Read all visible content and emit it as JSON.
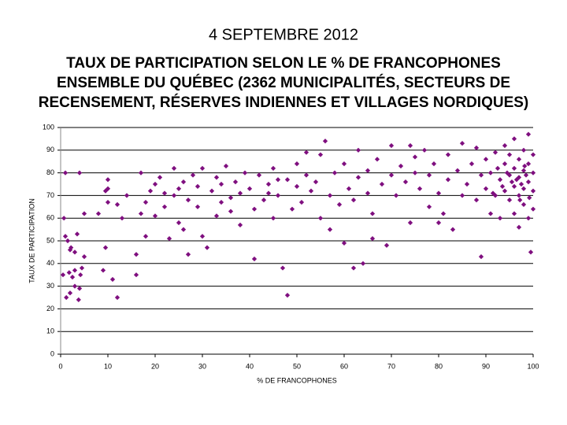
{
  "chart_data": {
    "type": "scatter",
    "title": "4 SEPTEMBRE 2012",
    "subtitle": [
      "TAUX DE PARTICIPATION SELON LE % DE FRANCOPHONES",
      "ENSEMBLE DU QUÉBEC (2362 MUNICIPALITÉS, SECTEURS DE",
      "RECENSEMENT, RÉSERVES INDIENNES ET VILLAGES NORDIQUES)"
    ],
    "x_label": "% DE FRANCOPHONES",
    "y_label": "TAUX DE PARTICIPATION",
    "xlim": [
      0,
      100
    ],
    "xticks": [
      0,
      10,
      20,
      30,
      40,
      50,
      60,
      70,
      80,
      90,
      100
    ],
    "ylim": [
      0,
      100
    ],
    "yticks": [
      0,
      10,
      20,
      30,
      40,
      50,
      60,
      70,
      80,
      90,
      100
    ],
    "grid": true,
    "color": "#7f0f7f",
    "x": [
      0.5,
      1,
      1.2,
      1.5,
      1.8,
      2,
      2.2,
      2.5,
      3,
      3,
      3.5,
      3.8,
      4,
      4.5,
      5,
      1,
      4,
      0.7,
      5,
      2,
      3,
      4.2,
      8,
      9,
      9.5,
      10,
      10,
      11,
      12,
      10,
      13,
      14,
      12,
      9.5,
      16,
      16,
      17,
      18,
      18,
      20,
      20,
      21,
      22,
      22,
      23,
      24,
      25,
      25,
      26,
      27,
      27,
      28,
      29,
      30,
      30,
      29,
      24,
      26,
      19,
      17,
      31,
      32,
      33,
      33,
      34,
      35,
      36,
      37,
      38,
      39,
      40,
      41,
      41,
      42,
      43,
      44,
      45,
      45,
      46,
      47,
      48,
      48,
      49,
      50,
      50,
      51,
      52,
      53,
      52,
      38,
      36,
      34,
      44,
      46,
      54,
      55,
      55,
      56,
      57,
      58,
      59,
      60,
      60,
      61,
      62,
      63,
      63,
      64,
      65,
      65,
      66,
      67,
      68,
      69,
      70,
      70,
      57,
      62,
      66,
      71,
      72,
      73,
      74,
      75,
      76,
      77,
      78,
      78,
      79,
      80,
      81,
      82,
      82,
      83,
      84,
      85,
      85,
      80,
      75,
      74,
      86,
      87,
      88,
      88,
      89,
      89,
      90,
      90,
      91,
      91,
      92,
      92,
      93,
      93,
      94,
      94,
      94,
      95,
      95,
      95,
      96,
      96,
      96,
      96,
      97,
      97,
      97,
      97,
      98,
      98,
      98,
      98,
      99,
      99,
      99,
      99,
      100,
      100,
      100,
      100,
      99.5,
      97.5,
      96.5,
      98.5,
      95.5,
      94.5,
      93.5,
      92.5,
      91.5,
      98.2,
      97.2,
      99.2
    ],
    "values": [
      35,
      52,
      25,
      50,
      36,
      27,
      47,
      34,
      45,
      30,
      53,
      24,
      29,
      38,
      43,
      80,
      80,
      60,
      62,
      46,
      37,
      35,
      62,
      37,
      47,
      73,
      67,
      33,
      25,
      77,
      60,
      70,
      66,
      72,
      44,
      35,
      80,
      52,
      67,
      75,
      61,
      78,
      71,
      65,
      51,
      82,
      73,
      58,
      76,
      68,
      44,
      79,
      74,
      82,
      52,
      65,
      70,
      55,
      72,
      62,
      47,
      72,
      78,
      61,
      75,
      83,
      69,
      76,
      57,
      80,
      73,
      42,
      64,
      79,
      68,
      75,
      82,
      60,
      70,
      38,
      77,
      26,
      64,
      74,
      84,
      67,
      79,
      72,
      89,
      71,
      63,
      67,
      71,
      77,
      76,
      88,
      60,
      94,
      70,
      80,
      66,
      84,
      49,
      73,
      38,
      78,
      90,
      40,
      71,
      81,
      62,
      86,
      75,
      48,
      79,
      92,
      55,
      68,
      51,
      70,
      83,
      76,
      58,
      87,
      73,
      90,
      65,
      79,
      84,
      71,
      62,
      88,
      77,
      55,
      81,
      70,
      93,
      58,
      80,
      92,
      75,
      84,
      68,
      91,
      43,
      79,
      73,
      86,
      62,
      80,
      70,
      89,
      77,
      60,
      84,
      72,
      92,
      68,
      79,
      88,
      74,
      82,
      62,
      95,
      70,
      78,
      86,
      56,
      73,
      81,
      90,
      66,
      76,
      84,
      97,
      60,
      72,
      80,
      88,
      64,
      45,
      75,
      77,
      79,
      76,
      80,
      74,
      82,
      71,
      83,
      68,
      69
    ]
  }
}
